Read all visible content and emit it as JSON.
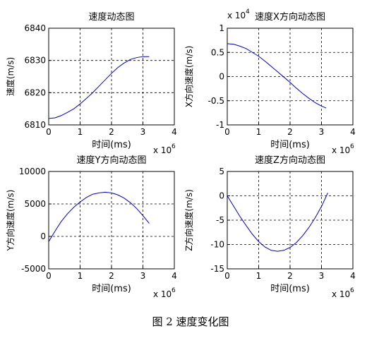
{
  "figure": {
    "caption": "图 2  速度变化图"
  },
  "chart_data": [
    {
      "type": "line",
      "title": "速度动态图",
      "xlabel": "时间(ms)",
      "ylabel": "速度(m/s)",
      "xlim": [
        0,
        4000000
      ],
      "ylim": [
        6810,
        6840
      ],
      "x_exponent_label": "x 10",
      "x_exponent_power": "6",
      "y_exponent_label": "",
      "y_exponent_power": "",
      "xticks": [
        0,
        1,
        2,
        3,
        4
      ],
      "yticks": [
        6810,
        6820,
        6830,
        6840
      ],
      "grid": true,
      "line_color": "#0000cc",
      "series": [
        {
          "x": [
            0,
            200000,
            400000,
            600000,
            800000,
            1000000,
            1200000,
            1400000,
            1600000,
            1800000,
            2000000,
            2200000,
            2400000,
            2600000,
            2800000,
            3000000,
            3200000
          ],
          "values": [
            6812.0,
            6812.2,
            6812.9,
            6813.9,
            6815.0,
            6816.5,
            6818.2,
            6820.0,
            6822.0,
            6824.0,
            6826.0,
            6827.8,
            6829.2,
            6830.3,
            6830.9,
            6831.2,
            6831.2
          ]
        }
      ]
    },
    {
      "type": "line",
      "title": "速度X方向动态图",
      "xlabel": "时间(ms)",
      "ylabel": "X方向速度(m/s)",
      "xlim": [
        0,
        4000000
      ],
      "ylim": [
        -1,
        1
      ],
      "x_exponent_label": "x 10",
      "x_exponent_power": "6",
      "y_exponent_label": "x 10",
      "y_exponent_power": "4",
      "xticks": [
        0,
        1,
        2,
        3,
        4
      ],
      "yticks": [
        -1,
        -0.5,
        0,
        0.5,
        1
      ],
      "grid": true,
      "line_color": "#0000cc",
      "series": [
        {
          "x": [
            0,
            200000,
            400000,
            600000,
            800000,
            1000000,
            1200000,
            1400000,
            1600000,
            1800000,
            2000000,
            2200000,
            2400000,
            2600000,
            2800000,
            3000000,
            3150000
          ],
          "values": [
            0.68,
            0.67,
            0.63,
            0.58,
            0.5,
            0.42,
            0.32,
            0.21,
            0.1,
            -0.01,
            -0.12,
            -0.24,
            -0.35,
            -0.45,
            -0.54,
            -0.61,
            -0.65
          ]
        }
      ]
    },
    {
      "type": "line",
      "title": "速度Y方向动态图",
      "xlabel": "时间(ms)",
      "ylabel": "Y方向速度(m/s)",
      "xlim": [
        0,
        4000000
      ],
      "ylim": [
        -5000,
        10000
      ],
      "x_exponent_label": "x 10",
      "x_exponent_power": "6",
      "y_exponent_label": "",
      "y_exponent_power": "",
      "xticks": [
        0,
        1,
        2,
        3,
        4
      ],
      "yticks": [
        -5000,
        0,
        5000,
        10000
      ],
      "grid": true,
      "line_color": "#0000cc",
      "series": [
        {
          "x": [
            0,
            200000,
            400000,
            600000,
            800000,
            1000000,
            1200000,
            1400000,
            1600000,
            1800000,
            2000000,
            2200000,
            2400000,
            2600000,
            2800000,
            3000000,
            3200000
          ],
          "values": [
            -800,
            800,
            2300,
            3500,
            4500,
            5300,
            6000,
            6500,
            6700,
            6800,
            6700,
            6400,
            5900,
            5200,
            4300,
            3200,
            2000
          ]
        }
      ]
    },
    {
      "type": "line",
      "title": "速度Z方向动态图",
      "xlabel": "时间(ms)",
      "ylabel": "Z方向速度(m/s)",
      "xlim": [
        0,
        4000000
      ],
      "ylim": [
        -15,
        5
      ],
      "x_exponent_label": "x 10",
      "x_exponent_power": "6",
      "y_exponent_label": "",
      "y_exponent_power": "",
      "xticks": [
        0,
        1,
        2,
        3,
        4
      ],
      "yticks": [
        -15,
        -10,
        -5,
        0,
        5
      ],
      "grid": true,
      "line_color": "#0000cc",
      "series": [
        {
          "x": [
            0,
            200000,
            400000,
            600000,
            800000,
            1000000,
            1200000,
            1400000,
            1600000,
            1800000,
            2000000,
            2200000,
            2400000,
            2600000,
            2800000,
            3000000,
            3200000
          ],
          "values": [
            0,
            -2.1,
            -4.2,
            -6.1,
            -7.9,
            -9.4,
            -10.5,
            -11.2,
            -11.4,
            -11.2,
            -10.6,
            -9.6,
            -8.2,
            -6.5,
            -4.5,
            -2.2,
            0.6
          ]
        }
      ]
    }
  ]
}
